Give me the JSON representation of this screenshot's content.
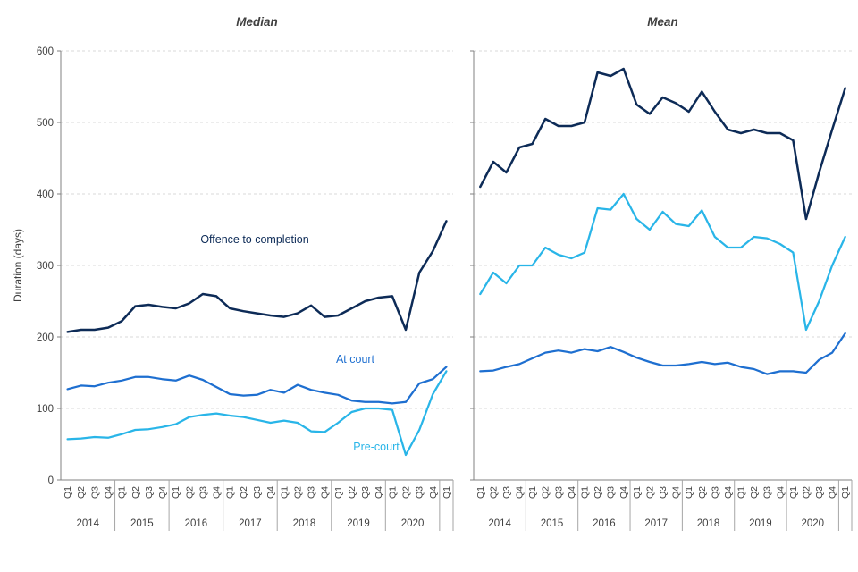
{
  "chart_data": {
    "type": "line",
    "ylabel": "Duration (days)",
    "ylim": [
      0,
      600
    ],
    "yticks": [
      0,
      100,
      200,
      300,
      400,
      500,
      600
    ],
    "grid": "horizontal-dashed",
    "x_quarter_labels": [
      "Q1",
      "Q2",
      "Q3",
      "Q4",
      "Q1",
      "Q2",
      "Q3",
      "Q4",
      "Q1",
      "Q2",
      "Q3",
      "Q4",
      "Q1",
      "Q2",
      "Q3",
      "Q4",
      "Q1",
      "Q2",
      "Q3",
      "Q4",
      "Q1",
      "Q2",
      "Q3",
      "Q4",
      "Q1",
      "Q2",
      "Q3",
      "Q4",
      "Q1"
    ],
    "year_labels": [
      "2014",
      "2015",
      "2016",
      "2017",
      "2018",
      "2019",
      "2020"
    ],
    "style": {
      "grid_color": "#d9d9d9",
      "axis_color": "#808080",
      "separator_color": "#a6a6a6",
      "tick_text_color": "#404040",
      "title_color": "#404040",
      "colors": {
        "offence_to_completion": "#0d2b57",
        "at_court": "#1e6fd0",
        "pre_court": "#29b5e8"
      }
    },
    "panels": [
      {
        "title": "Median",
        "series": [
          {
            "name": "Offence to completion",
            "color_key": "offence_to_completion",
            "values": [
              207,
              210,
              210,
              213,
              222,
              243,
              245,
              242,
              240,
              247,
              260,
              257,
              240,
              236,
              233,
              230,
              228,
              233,
              244,
              228,
              230,
              240,
              250,
              255,
              257,
              210,
              290,
              320,
              362
            ]
          },
          {
            "name": "At court",
            "color_key": "at_court",
            "values": [
              127,
              132,
              131,
              136,
              139,
              144,
              144,
              141,
              139,
              146,
              140,
              130,
              120,
              118,
              119,
              126,
              122,
              133,
              126,
              122,
              119,
              111,
              109,
              109,
              107,
              109,
              135,
              141,
              158
            ]
          },
          {
            "name": "Pre-court",
            "color_key": "pre_court",
            "values": [
              57,
              58,
              60,
              59,
              64,
              70,
              71,
              74,
              78,
              88,
              91,
              93,
              90,
              88,
              84,
              80,
              83,
              80,
              68,
              67,
              80,
              95,
              100,
              100,
              98,
              35,
              70,
              120,
              152
            ]
          }
        ]
      },
      {
        "title": "Mean",
        "series": [
          {
            "name": "Offence to completion",
            "color_key": "offence_to_completion",
            "values": [
              410,
              445,
              430,
              465,
              470,
              505,
              495,
              495,
              500,
              570,
              565,
              575,
              525,
              512,
              535,
              527,
              515,
              543,
              515,
              490,
              485,
              490,
              485,
              485,
              475,
              365,
              430,
              490,
              548
            ]
          },
          {
            "name": "At court",
            "color_key": "at_court",
            "values": [
              152,
              153,
              158,
              162,
              170,
              178,
              181,
              178,
              183,
              180,
              186,
              179,
              171,
              165,
              160,
              160,
              162,
              165,
              162,
              164,
              158,
              155,
              148,
              152,
              152,
              150,
              168,
              178,
              205
            ]
          },
          {
            "name": "Pre-court",
            "color_key": "pre_court",
            "values": [
              260,
              290,
              275,
              300,
              300,
              325,
              315,
              310,
              318,
              380,
              378,
              400,
              365,
              350,
              375,
              358,
              355,
              377,
              340,
              325,
              325,
              340,
              338,
              330,
              318,
              210,
              250,
              300,
              340
            ]
          }
        ]
      }
    ]
  }
}
